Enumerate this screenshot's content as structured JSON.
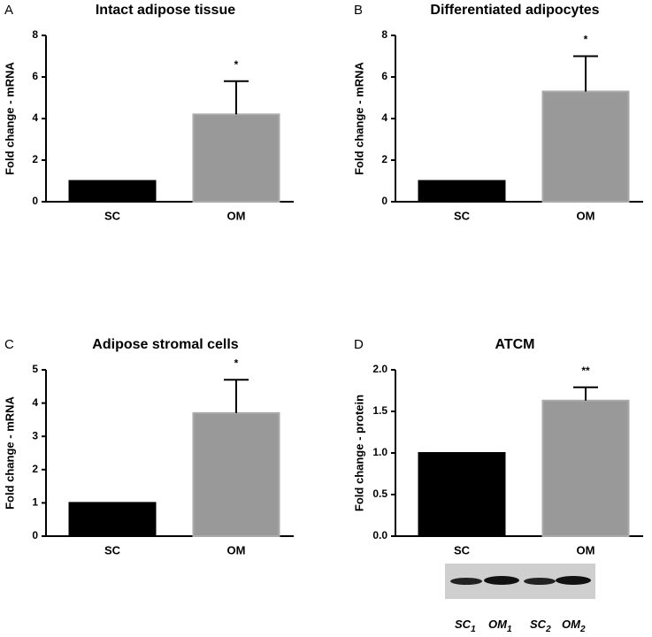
{
  "chart_data": [
    {
      "type": "bar",
      "panel": "A",
      "title": "Intact adipose tissue",
      "ylabel": "Fold change - mRNA",
      "categories": [
        "SC",
        "OM"
      ],
      "values": [
        1.0,
        4.2
      ],
      "errors": [
        null,
        1.6
      ],
      "significance": [
        null,
        "*"
      ],
      "colors": [
        "#000000",
        "#999999"
      ],
      "ylim": [
        0,
        8
      ],
      "yticks": [
        0,
        2,
        4,
        6,
        8
      ]
    },
    {
      "type": "bar",
      "panel": "B",
      "title": "Differentiated adipocytes",
      "ylabel": "Fold change - mRNA",
      "categories": [
        "SC",
        "OM"
      ],
      "values": [
        1.0,
        5.3
      ],
      "errors": [
        null,
        1.7
      ],
      "significance": [
        null,
        "*"
      ],
      "colors": [
        "#000000",
        "#999999"
      ],
      "ylim": [
        0,
        8
      ],
      "yticks": [
        0,
        2,
        4,
        6,
        8
      ]
    },
    {
      "type": "bar",
      "panel": "C",
      "title": "Adipose stromal cells",
      "ylabel": "Fold change - mRNA",
      "categories": [
        "SC",
        "OM"
      ],
      "values": [
        1.0,
        3.7
      ],
      "errors": [
        null,
        1.0
      ],
      "significance": [
        null,
        "*"
      ],
      "colors": [
        "#000000",
        "#999999"
      ],
      "ylim": [
        0,
        5
      ],
      "yticks": [
        0,
        1,
        2,
        3,
        4,
        5
      ]
    },
    {
      "type": "bar",
      "panel": "D",
      "title": "ATCM",
      "ylabel": "Fold change - protein",
      "categories": [
        "SC",
        "OM"
      ],
      "values": [
        1.0,
        1.63
      ],
      "errors": [
        null,
        0.16
      ],
      "significance": [
        null,
        "**"
      ],
      "colors": [
        "#000000",
        "#999999"
      ],
      "ylim": [
        0,
        2.0
      ],
      "yticks": [
        {
          "value": 0,
          "label": "0.0"
        },
        {
          "value": 0.5,
          "label": "0.5"
        },
        {
          "value": 1.0,
          "label": "1.0"
        },
        {
          "value": 1.5,
          "label": "1.5"
        },
        {
          "value": 2.0,
          "label": "2.0"
        }
      ],
      "blot_labels": [
        {
          "text": "SC",
          "sub": "1"
        },
        {
          "text": "OM",
          "sub": "1"
        },
        {
          "text": "SC",
          "sub": "2"
        },
        {
          "text": "OM",
          "sub": "2"
        }
      ]
    }
  ]
}
